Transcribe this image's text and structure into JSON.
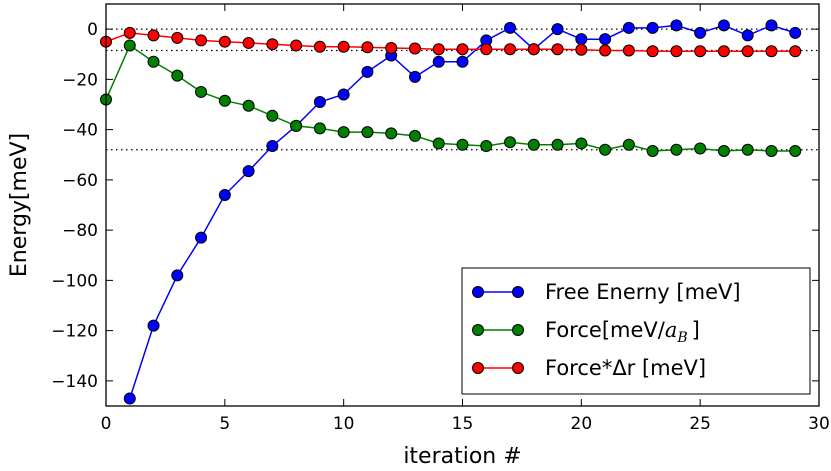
{
  "chart_data": {
    "type": "line",
    "xlabel": "iteration #",
    "ylabel": "Energy[meV]",
    "xlim": [
      0,
      30
    ],
    "ylim": [
      -150,
      10
    ],
    "xticks": [
      0,
      5,
      10,
      15,
      20,
      25,
      30
    ],
    "yticks": [
      0,
      -20,
      -40,
      -60,
      -80,
      -100,
      -120,
      -140
    ],
    "xtick_labels": [
      "0",
      "5",
      "10",
      "15",
      "20",
      "25",
      "30"
    ],
    "ytick_labels": [
      "0",
      "−20",
      "−40",
      "−60",
      "−80",
      "−100",
      "−120",
      "−140"
    ],
    "reference_lines": [
      0,
      -8.5,
      -48
    ],
    "legend_position": "lower-right",
    "series": [
      {
        "name": "Free Enerny [meV]",
        "color": "#0000ff",
        "x": [
          1,
          2,
          3,
          4,
          5,
          6,
          7,
          8,
          9,
          10,
          11,
          12,
          13,
          14,
          15,
          16,
          17,
          18,
          19,
          20,
          21,
          22,
          23,
          24,
          25,
          26,
          27,
          28,
          29
        ],
        "values": [
          -147,
          -118,
          -98,
          -83,
          -66,
          -56.5,
          -46.5,
          -38.5,
          -29,
          -26,
          -17,
          -10.5,
          -19,
          -13,
          -13,
          -4.5,
          0.5,
          -8,
          0,
          -4,
          -4,
          0.5,
          0.5,
          1.5,
          -1.5,
          1.5,
          -2.5,
          1.5,
          -1.5
        ]
      },
      {
        "name": "Force[meV/",
        "name_math": "a",
        "name_sub": "B",
        "name_end": "]",
        "color": "#008000",
        "x": [
          0,
          1,
          2,
          3,
          4,
          5,
          6,
          7,
          8,
          9,
          10,
          11,
          12,
          13,
          14,
          15,
          16,
          17,
          18,
          19,
          20,
          21,
          22,
          23,
          24,
          25,
          26,
          27,
          28,
          29
        ],
        "values": [
          -28,
          -6.5,
          -13,
          -18.5,
          -25,
          -28.5,
          -30.5,
          -34.5,
          -38.5,
          -39.5,
          -41,
          -41,
          -41.5,
          -42.5,
          -45.5,
          -46,
          -46.5,
          -45,
          -46,
          -46,
          -45.5,
          -48,
          -46,
          -48.5,
          -48,
          -47.5,
          -48.5,
          -48,
          -48.5,
          -48.5
        ]
      },
      {
        "name": "Force*Δr [meV]",
        "color": "#ff0000",
        "x": [
          0,
          1,
          2,
          3,
          4,
          5,
          6,
          7,
          8,
          9,
          10,
          11,
          12,
          13,
          14,
          15,
          16,
          17,
          18,
          19,
          20,
          21,
          22,
          23,
          24,
          25,
          26,
          27,
          28,
          29
        ],
        "values": [
          -5,
          -1.5,
          -2.5,
          -3.5,
          -4.5,
          -5,
          -5.5,
          -6,
          -6.5,
          -7,
          -7,
          -7.2,
          -7.5,
          -7.7,
          -8,
          -8,
          -8,
          -8,
          -8,
          -8,
          -8.2,
          -8.5,
          -8.5,
          -8.8,
          -8.8,
          -8.8,
          -8.8,
          -8.8,
          -8.8,
          -8.8
        ]
      }
    ]
  }
}
